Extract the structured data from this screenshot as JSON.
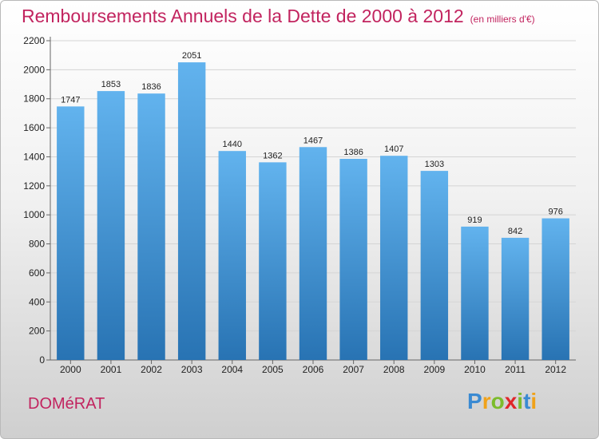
{
  "title": "Remboursements Annuels de la Dette de 2000 à 2012",
  "subtitle": "(en milliers d'€)",
  "commune": "DOMéRAT",
  "brand": {
    "letters": [
      "P",
      "r",
      "o",
      "x",
      "i",
      "t",
      "i"
    ],
    "colors": [
      "#3a8ad2",
      "#f0a21a",
      "#7cbc2c",
      "#e0262a",
      "#7cbc2c",
      "#3a8ad2",
      "#f0a21a"
    ]
  },
  "colors": {
    "bar_light": "#62b3ee",
    "bar_dark": "#2873b3",
    "title": "#c2245f"
  },
  "chart_data": {
    "type": "bar",
    "categories": [
      "2000",
      "2001",
      "2002",
      "2003",
      "2004",
      "2005",
      "2006",
      "2007",
      "2008",
      "2009",
      "2010",
      "2011",
      "2012"
    ],
    "values": [
      1747,
      1853,
      1836,
      2051,
      1440,
      1362,
      1467,
      1386,
      1407,
      1303,
      919,
      842,
      976
    ],
    "title": "Remboursements Annuels de la Dette de 2000 à 2012",
    "xlabel": "",
    "ylabel": "",
    "ylim": [
      0,
      2200
    ],
    "yticks": [
      0,
      200,
      400,
      600,
      800,
      1000,
      1200,
      1400,
      1600,
      1800,
      2000,
      2200
    ],
    "grid": true,
    "data_labels": true
  }
}
